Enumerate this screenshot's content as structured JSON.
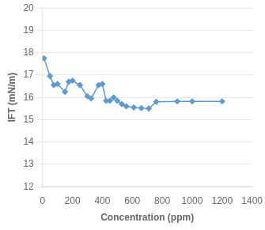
{
  "chart_data": {
    "type": "line",
    "x": [
      10,
      50,
      75,
      100,
      150,
      175,
      200,
      250,
      300,
      325,
      375,
      400,
      425,
      450,
      475,
      500,
      530,
      560,
      610,
      660,
      710,
      760,
      900,
      1000,
      1200
    ],
    "values": [
      17.75,
      16.95,
      16.55,
      16.6,
      16.25,
      16.7,
      16.75,
      16.55,
      16.05,
      15.95,
      16.55,
      16.6,
      15.85,
      15.85,
      16.0,
      15.85,
      15.7,
      15.6,
      15.55,
      15.52,
      15.5,
      15.8,
      15.82,
      15.82,
      15.82
    ],
    "color": "#5b9bd5",
    "marker": "diamond",
    "xlabel": "Concentration (ppm)",
    "ylabel": "IFT (mN/m)",
    "xlim": [
      0,
      1400
    ],
    "ylim": [
      12,
      20
    ],
    "xticks": [
      0,
      200,
      400,
      600,
      800,
      1000,
      1200,
      1400
    ],
    "yticks": [
      12,
      13,
      14,
      15,
      16,
      17,
      18,
      19,
      20
    ],
    "grid": "y"
  }
}
